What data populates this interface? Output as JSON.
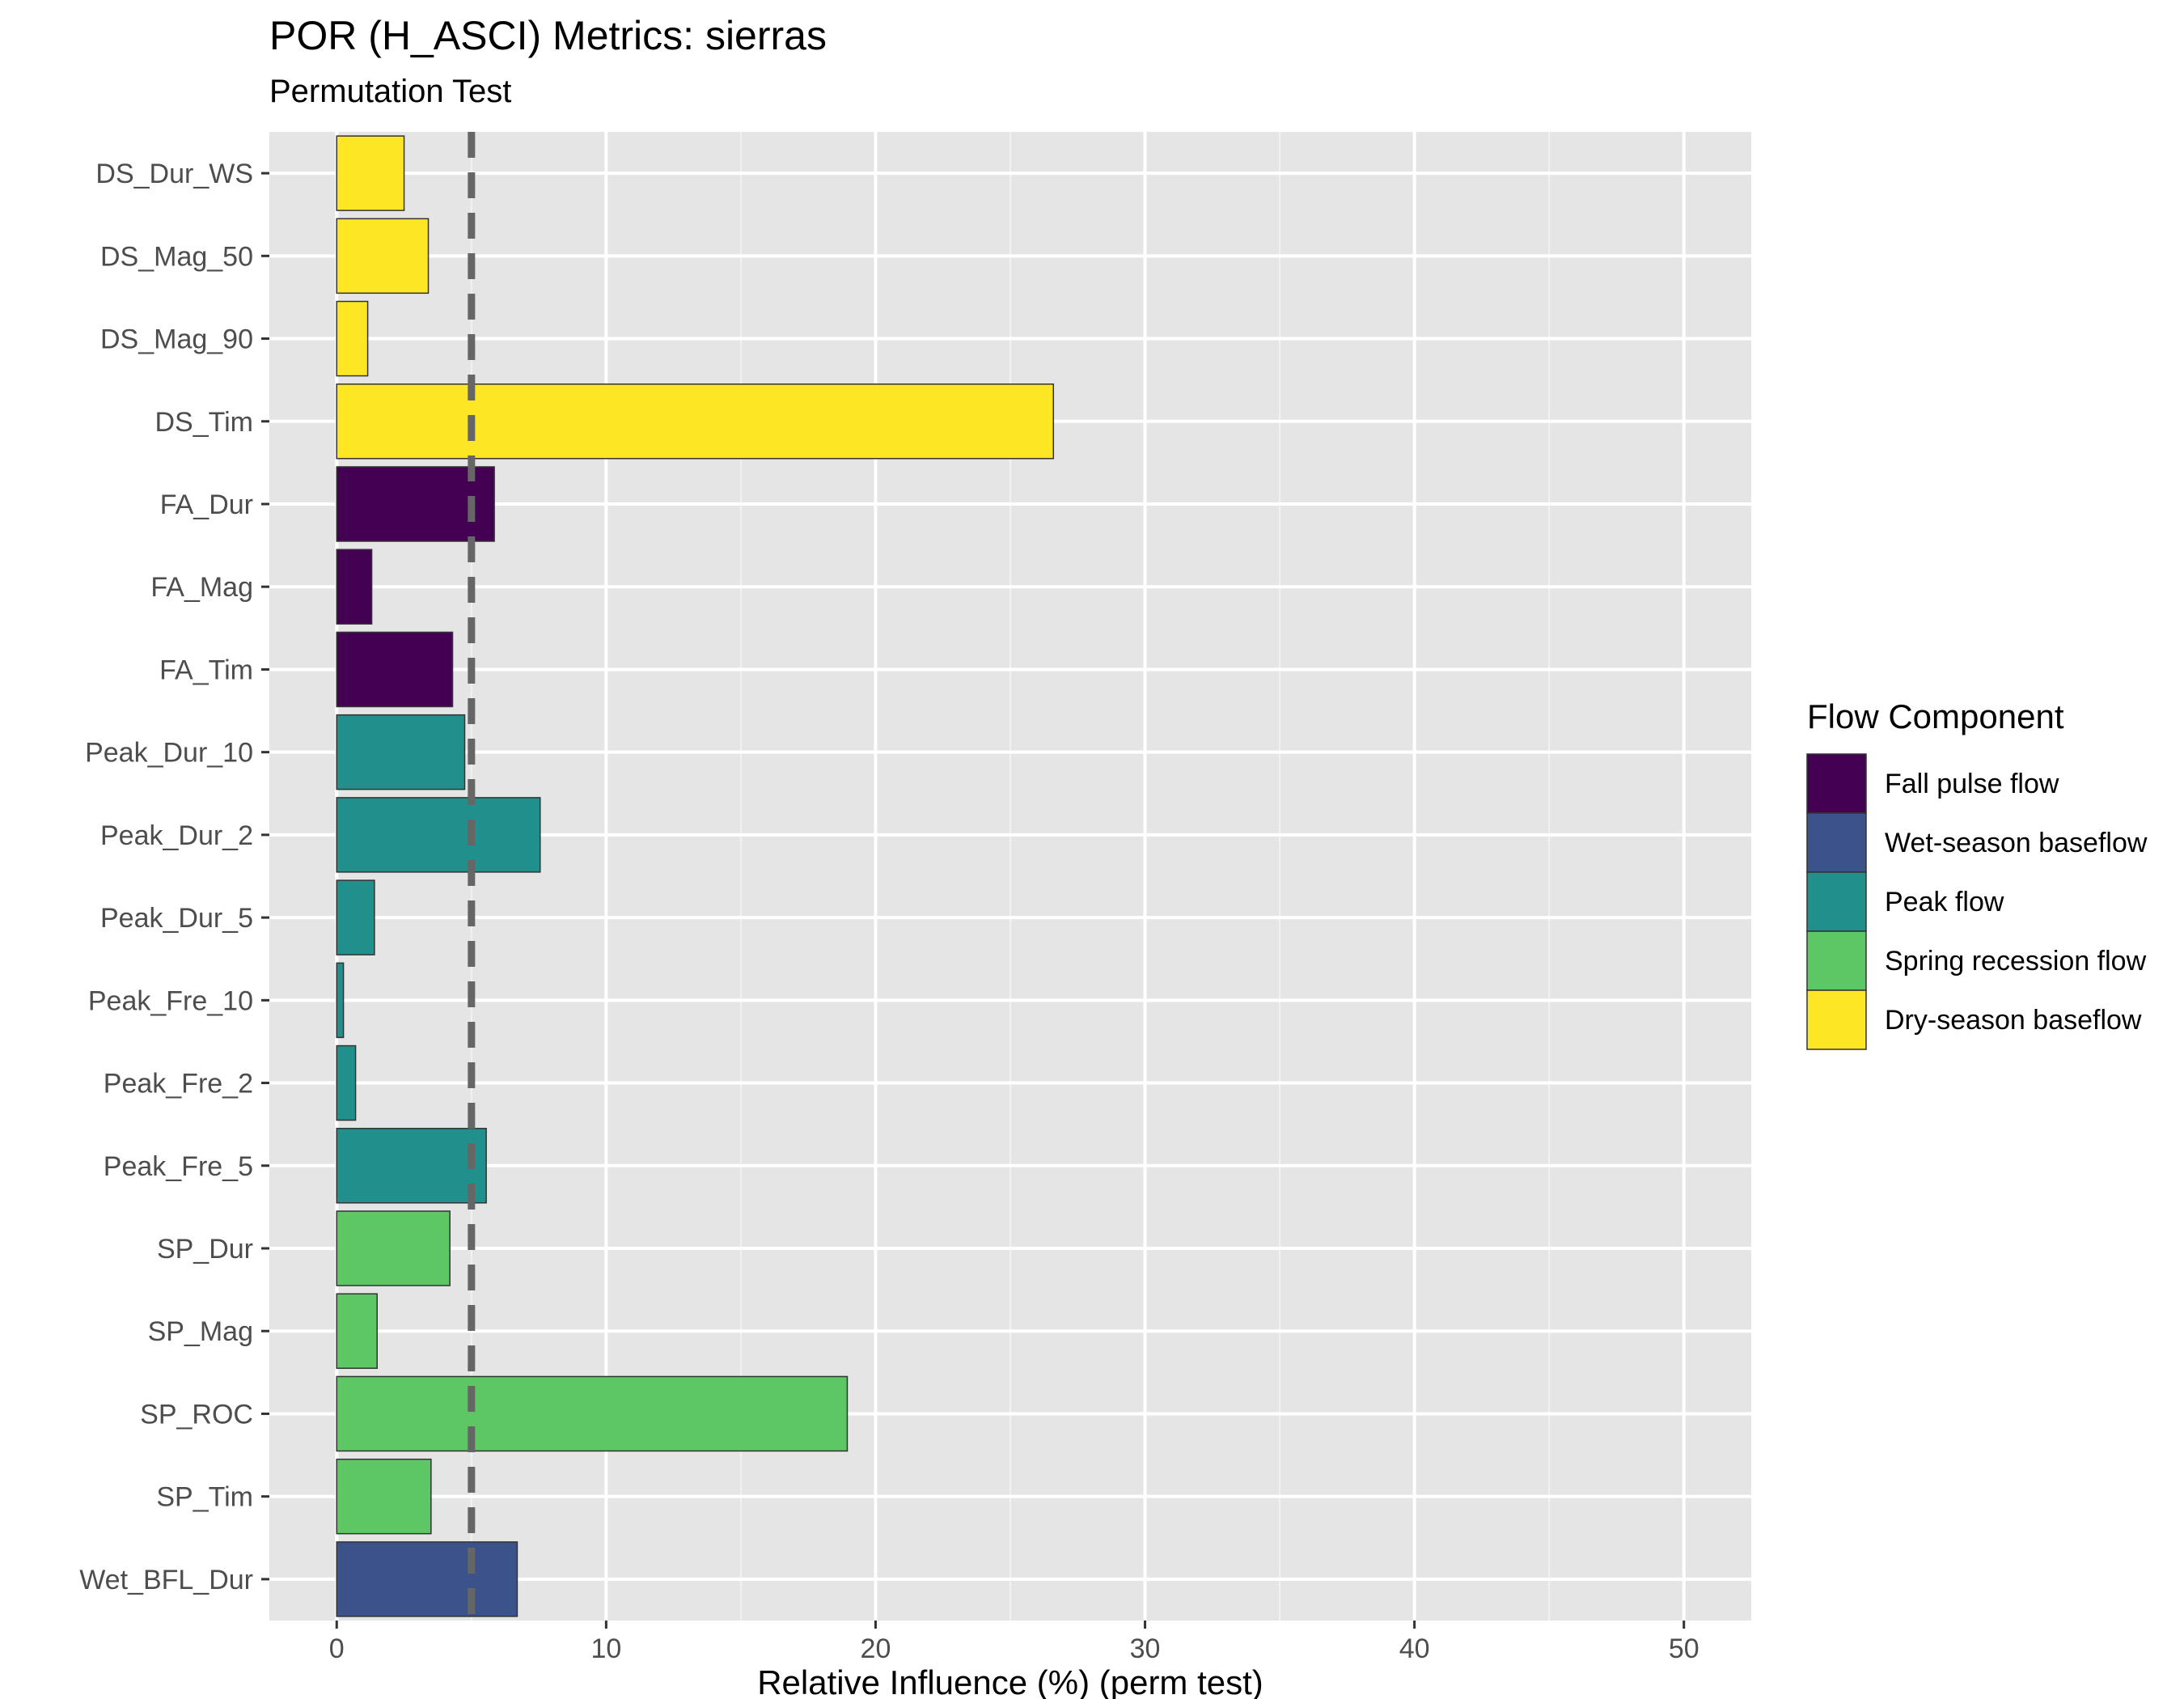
{
  "chart_data": {
    "type": "bar",
    "orientation": "horizontal",
    "title": "POR (H_ASCI) Metrics: sierras",
    "subtitle": "Permutation Test",
    "xlabel": "Relative Influence (%) (perm test)",
    "ylabel": "",
    "xlim": [
      -2.5,
      52.5
    ],
    "xticks": [
      0,
      10,
      20,
      30,
      40,
      50
    ],
    "reference_line": {
      "x": 5,
      "style": "dashed",
      "color": "#666666"
    },
    "grid": true,
    "panel_background": "#e5e5e5",
    "legend": {
      "title": "Flow Component",
      "position": "right",
      "entries": [
        {
          "label": "Fall pulse flow",
          "color": "#440154"
        },
        {
          "label": "Wet-season baseflow",
          "color": "#3b528b"
        },
        {
          "label": "Peak flow",
          "color": "#21908c"
        },
        {
          "label": "Spring recession flow",
          "color": "#5dc863"
        },
        {
          "label": "Dry-season baseflow",
          "color": "#fde725"
        }
      ]
    },
    "bars": [
      {
        "category": "DS_Dur_WS",
        "value": 2.5,
        "component": "Dry-season baseflow"
      },
      {
        "category": "DS_Mag_50",
        "value": 3.4,
        "component": "Dry-season baseflow"
      },
      {
        "category": "DS_Mag_90",
        "value": 1.15,
        "component": "Dry-season baseflow"
      },
      {
        "category": "DS_Tim",
        "value": 26.6,
        "component": "Dry-season baseflow"
      },
      {
        "category": "FA_Dur",
        "value": 5.85,
        "component": "Fall pulse flow"
      },
      {
        "category": "FA_Mag",
        "value": 1.3,
        "component": "Fall pulse flow"
      },
      {
        "category": "FA_Tim",
        "value": 4.3,
        "component": "Fall pulse flow"
      },
      {
        "category": "Peak_Dur_10",
        "value": 4.75,
        "component": "Peak flow"
      },
      {
        "category": "Peak_Dur_2",
        "value": 7.55,
        "component": "Peak flow"
      },
      {
        "category": "Peak_Dur_5",
        "value": 1.4,
        "component": "Peak flow"
      },
      {
        "category": "Peak_Fre_10",
        "value": 0.25,
        "component": "Peak flow"
      },
      {
        "category": "Peak_Fre_2",
        "value": 0.7,
        "component": "Peak flow"
      },
      {
        "category": "Peak_Fre_5",
        "value": 5.55,
        "component": "Peak flow"
      },
      {
        "category": "SP_Dur",
        "value": 4.2,
        "component": "Spring recession flow"
      },
      {
        "category": "SP_Mag",
        "value": 1.5,
        "component": "Spring recession flow"
      },
      {
        "category": "SP_ROC",
        "value": 18.95,
        "component": "Spring recession flow"
      },
      {
        "category": "SP_Tim",
        "value": 3.5,
        "component": "Spring recession flow"
      },
      {
        "category": "Wet_BFL_Dur",
        "value": 6.7,
        "component": "Wet-season baseflow"
      }
    ]
  }
}
